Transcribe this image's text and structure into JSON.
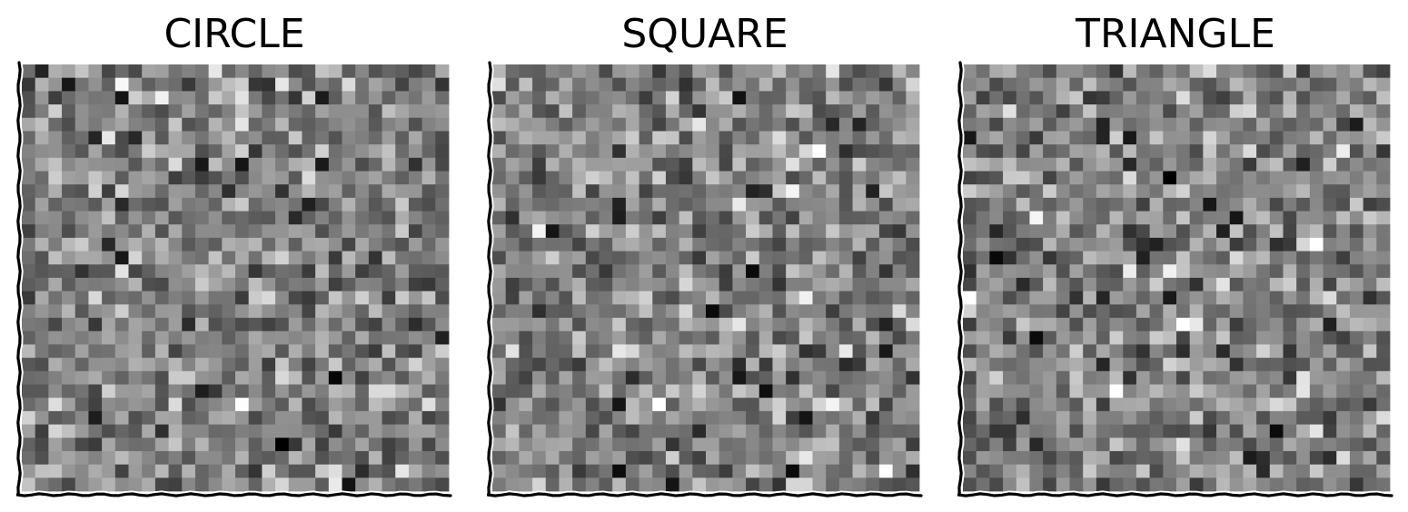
{
  "chart_data": [
    {
      "type": "heatmap",
      "title": "CIRCLE",
      "grid_size": 32,
      "colormap": "gray",
      "value_range": [
        0,
        1
      ],
      "seed": 1401,
      "xticks": "none",
      "yticks": "none",
      "axis_style": "hand-drawn wavy left and bottom spines"
    },
    {
      "type": "heatmap",
      "title": "SQUARE",
      "grid_size": 32,
      "colormap": "gray",
      "value_range": [
        0,
        1
      ],
      "seed": 2719,
      "xticks": "none",
      "yticks": "none",
      "axis_style": "hand-drawn wavy left and bottom spines"
    },
    {
      "type": "heatmap",
      "title": "TRIANGLE",
      "grid_size": 32,
      "colormap": "gray",
      "value_range": [
        0,
        1
      ],
      "seed": 4243,
      "xticks": "none",
      "yticks": "none",
      "axis_style": "hand-drawn wavy left and bottom spines"
    }
  ]
}
